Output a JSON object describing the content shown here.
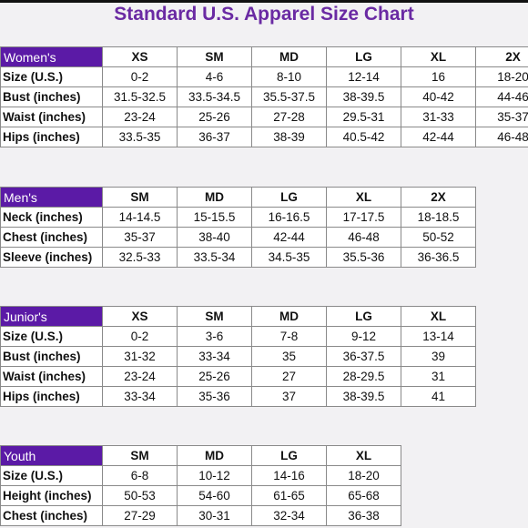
{
  "title": "Standard U.S. Apparel Size Chart",
  "womens": {
    "label": "Women's",
    "columns": [
      "XS",
      "SM",
      "MD",
      "LG",
      "XL",
      "2X"
    ],
    "rows": [
      {
        "label": "Size (U.S.)",
        "values": [
          "0-2",
          "4-6",
          "8-10",
          "12-14",
          "16",
          "18-20"
        ]
      },
      {
        "label": "Bust (inches)",
        "values": [
          "31.5-32.5",
          "33.5-34.5",
          "35.5-37.5",
          "38-39.5",
          "40-42",
          "44-46"
        ]
      },
      {
        "label": "Waist (inches)",
        "values": [
          "23-24",
          "25-26",
          "27-28",
          "29.5-31",
          "31-33",
          "35-37"
        ]
      },
      {
        "label": "Hips (inches)",
        "values": [
          "33.5-35",
          "36-37",
          "38-39",
          "40.5-42",
          "42-44",
          "46-48"
        ]
      }
    ]
  },
  "mens": {
    "label": "Men's",
    "columns": [
      "SM",
      "MD",
      "LG",
      "XL",
      "2X"
    ],
    "rows": [
      {
        "label": "Neck (inches)",
        "values": [
          "14-14.5",
          "15-15.5",
          "16-16.5",
          "17-17.5",
          "18-18.5"
        ]
      },
      {
        "label": "Chest (inches)",
        "values": [
          "35-37",
          "38-40",
          "42-44",
          "46-48",
          "50-52"
        ]
      },
      {
        "label": "Sleeve (inches)",
        "values": [
          "32.5-33",
          "33.5-34",
          "34.5-35",
          "35.5-36",
          "36-36.5"
        ]
      }
    ]
  },
  "juniors": {
    "label": "Junior's",
    "columns": [
      "XS",
      "SM",
      "MD",
      "LG",
      "XL"
    ],
    "rows": [
      {
        "label": "Size (U.S.)",
        "values": [
          "0-2",
          "3-6",
          "7-8",
          "9-12",
          "13-14"
        ]
      },
      {
        "label": "Bust (inches)",
        "values": [
          "31-32",
          "33-34",
          "35",
          "36-37.5",
          "39"
        ]
      },
      {
        "label": "Waist (inches)",
        "values": [
          "23-24",
          "25-26",
          "27",
          "28-29.5",
          "31"
        ]
      },
      {
        "label": "Hips (inches)",
        "values": [
          "33-34",
          "35-36",
          "37",
          "38-39.5",
          "41"
        ]
      }
    ]
  },
  "youth": {
    "label": "Youth",
    "columns": [
      "SM",
      "MD",
      "LG",
      "XL"
    ],
    "rows": [
      {
        "label": "Size (U.S.)",
        "values": [
          "6-8",
          "10-12",
          "14-16",
          "18-20"
        ]
      },
      {
        "label": "Height (inches)",
        "values": [
          "50-53",
          "54-60",
          "61-65",
          "65-68"
        ]
      },
      {
        "label": "Chest (inches)",
        "values": [
          "27-29",
          "30-31",
          "32-34",
          "36-38"
        ]
      }
    ]
  }
}
